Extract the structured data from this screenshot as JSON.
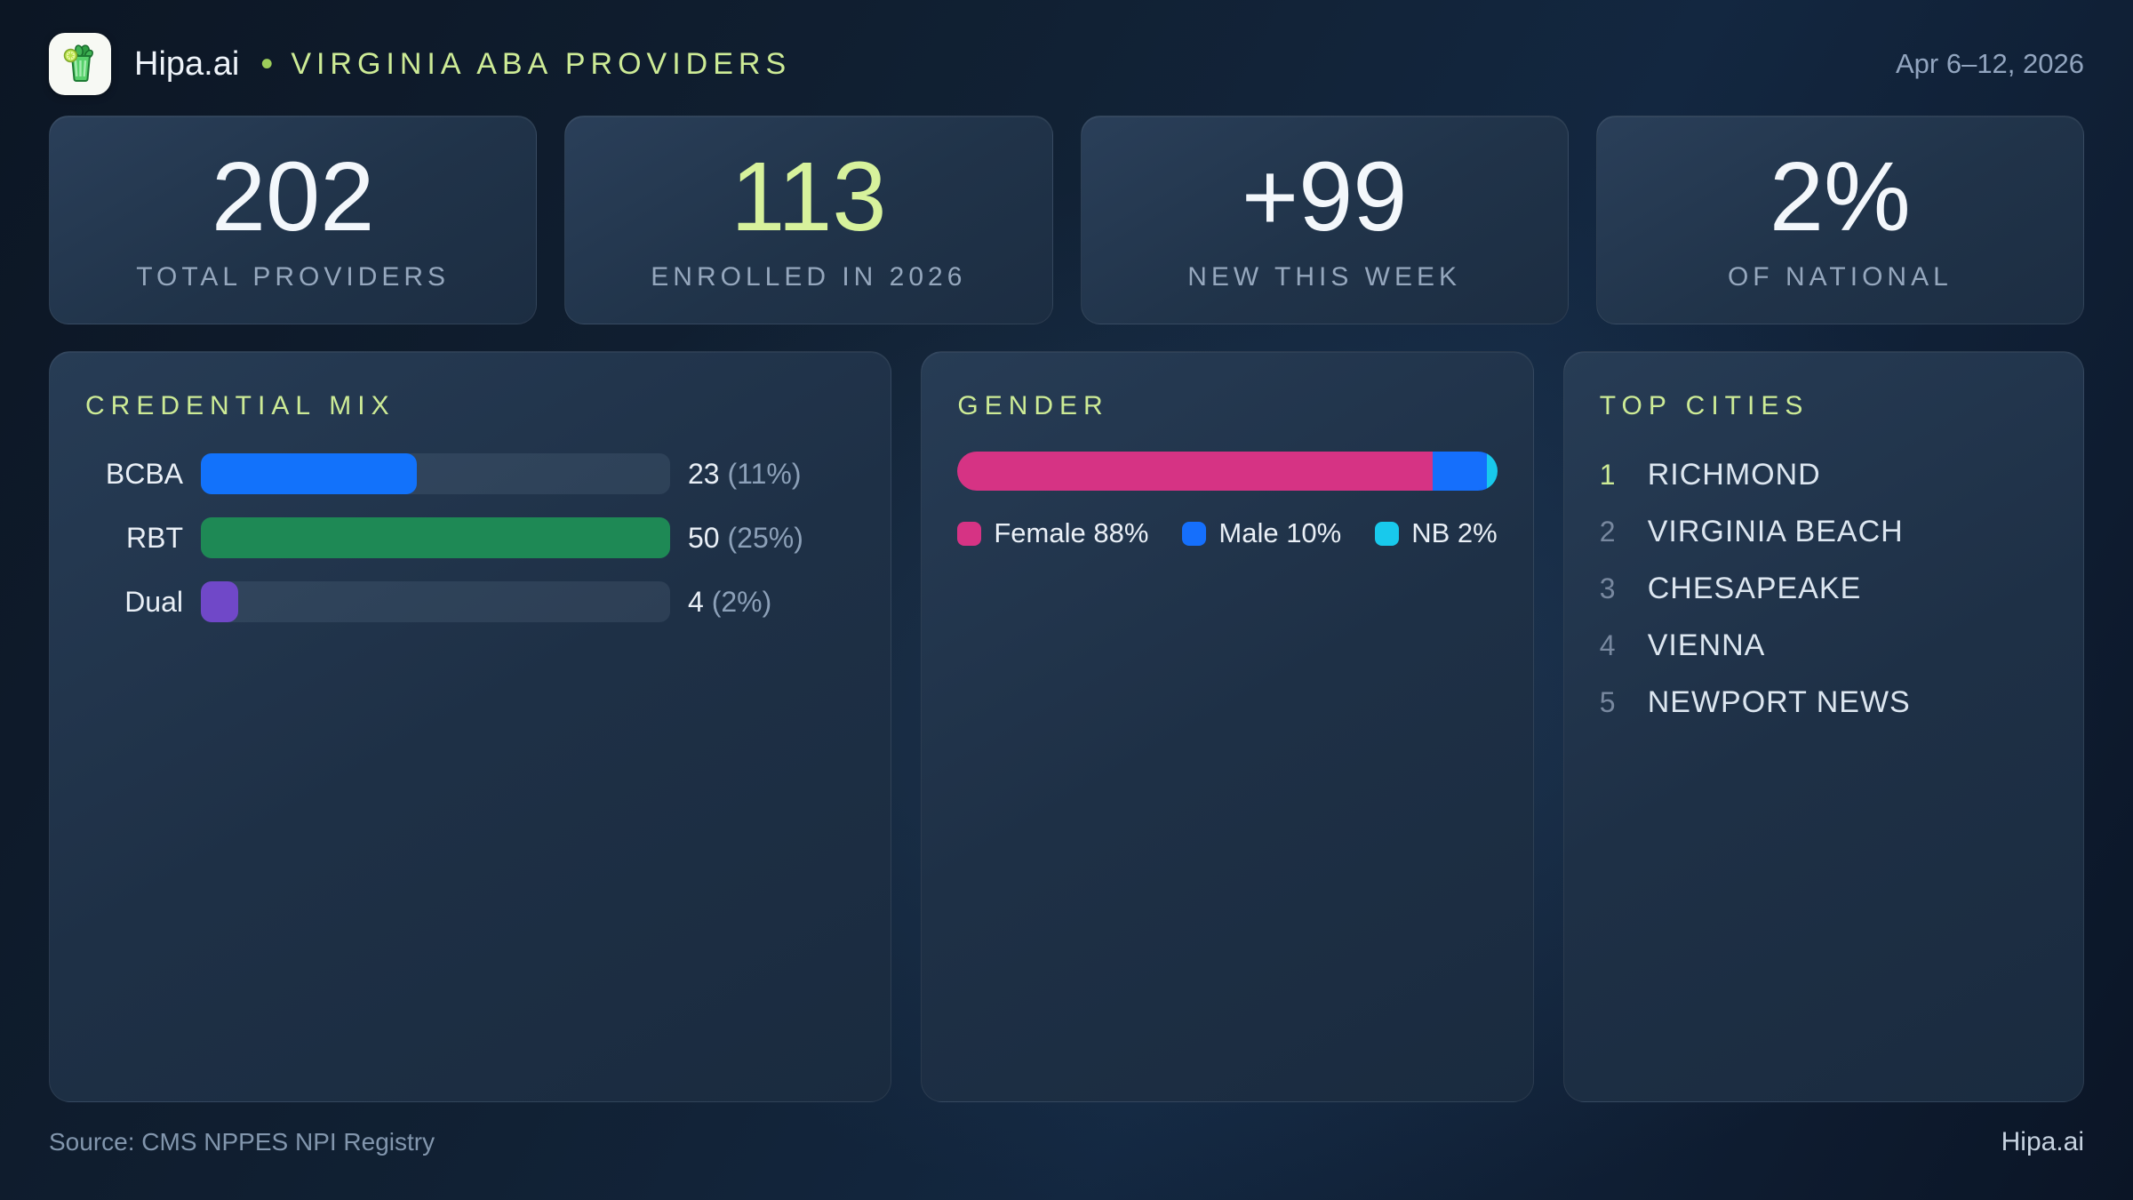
{
  "header": {
    "brand": "Hipa.ai",
    "separator_dot": "•",
    "title": "VIRGINIA ABA PROVIDERS",
    "date_range": "Apr 6–12, 2026"
  },
  "stats": [
    {
      "value": "202",
      "label": "TOTAL PROVIDERS"
    },
    {
      "value": "113",
      "label": "ENROLLED IN 2026"
    },
    {
      "value": "+99",
      "label": "NEW THIS WEEK"
    },
    {
      "value": "2%",
      "label": "OF NATIONAL"
    }
  ],
  "chart_data": [
    {
      "type": "bar",
      "orientation": "horizontal",
      "title": "CREDENTIAL MIX",
      "categories": [
        "BCBA",
        "RBT",
        "Dual"
      ],
      "values": [
        23,
        50,
        4
      ],
      "percents": [
        "11%",
        "25%",
        "2%"
      ],
      "value_labels": [
        "23 (11%)",
        "50 (25%)",
        "4 (2%)"
      ],
      "xlim": [
        0,
        50
      ],
      "bar_colors": [
        "#1272fb",
        "#1e8955",
        "#7048c8"
      ],
      "grid": false
    },
    {
      "type": "bar",
      "stacked": true,
      "title": "GENDER",
      "series": [
        {
          "name": "Female",
          "value": 88,
          "color": "#d63384",
          "legend": "Female 88%"
        },
        {
          "name": "Male",
          "value": 10,
          "color": "#156ffc",
          "legend": "Male 10%"
        },
        {
          "name": "NB",
          "value": 2,
          "color": "#18c9ec",
          "legend": "NB 2%"
        }
      ],
      "legend_position": "bottom"
    },
    {
      "type": "table",
      "title": "TOP CITIES",
      "rows": [
        {
          "rank": "1",
          "city": "RICHMOND"
        },
        {
          "rank": "2",
          "city": "VIRGINIA BEACH"
        },
        {
          "rank": "3",
          "city": "CHESAPEAKE"
        },
        {
          "rank": "4",
          "city": "VIENNA"
        },
        {
          "rank": "5",
          "city": "NEWPORT NEWS"
        }
      ]
    }
  ],
  "footer": {
    "source": "Source: CMS NPPES NPI Registry",
    "brand": "Hipa.ai"
  },
  "colors": {
    "accent_lime": "#d7f29c",
    "panel_title_lime": "#cdeb96",
    "bcba_blue": "#1272fb",
    "rbt_green": "#1e8955",
    "dual_purple": "#7048c8",
    "female_pink": "#d63384",
    "male_blue": "#156ffc",
    "nb_cyan": "#18c9ec"
  },
  "icons": {
    "logo": "mojito-glass-icon"
  }
}
